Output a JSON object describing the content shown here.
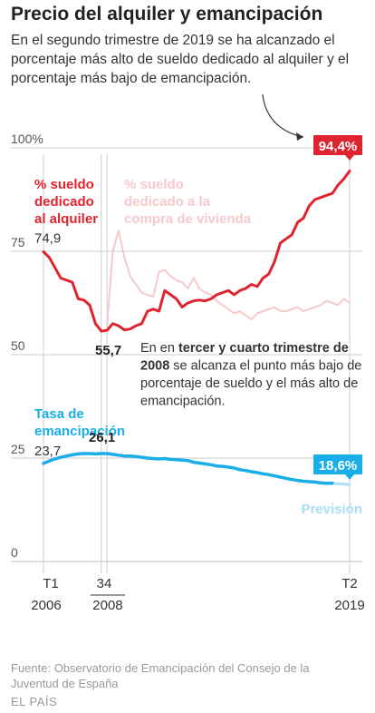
{
  "title": "Precio del alquiler y emancipación",
  "subtitle": "En el segundo trimestre de 2019 se ha alcanzado el porcentaje más alto de sueldo dedicado al alquiler y el porcentaje más bajo de emancipación.",
  "footer": {
    "source": "Fuente: Observatorio de Emancipación del Consejo de la Juventud de España",
    "brand": "EL PAÍS"
  },
  "colors": {
    "alquiler": "#e0242f",
    "compra": "#f7c9cb",
    "emancipacion": "#19aee8",
    "prevision": "#a9def5",
    "axis": "#333333",
    "grid": "#cccccc"
  },
  "chart_data": {
    "type": "line",
    "ylim": [
      0,
      100
    ],
    "yticks": [
      0,
      25,
      50,
      75,
      100
    ],
    "ytick_labels": [
      "0",
      "25",
      "50",
      "75",
      "100%"
    ],
    "xticks": [
      {
        "index": 0,
        "top": "T1",
        "bottom": "2006"
      },
      {
        "index": 10,
        "top": "3",
        "bottom": ""
      },
      {
        "index": 11,
        "top": "4",
        "bottom": ""
      },
      {
        "index": 53,
        "top": "T2",
        "bottom": "2019"
      }
    ],
    "year_2008_label": "2008",
    "series": [
      {
        "name": "% sueldo dedicado al alquiler",
        "key": "alquiler",
        "x": [
          0,
          1,
          2,
          3,
          4,
          5,
          6,
          7,
          8,
          9,
          10,
          11,
          12,
          13,
          14,
          15,
          16,
          17,
          18,
          19,
          20,
          21,
          22,
          23,
          24,
          25,
          26,
          27,
          28,
          29,
          30,
          31,
          32,
          33,
          34,
          35,
          36,
          37,
          38,
          39,
          40,
          41,
          42,
          43,
          44,
          45,
          46,
          47,
          48,
          49,
          50,
          51,
          52,
          53
        ],
        "values": [
          74.9,
          73.5,
          71.0,
          68.5,
          68.0,
          67.5,
          63.5,
          63.2,
          62.0,
          57.5,
          55.7,
          55.9,
          57.5,
          57.0,
          56.0,
          56.2,
          57.0,
          57.5,
          60.5,
          61.0,
          60.5,
          65.5,
          64.5,
          63.5,
          61.5,
          62.5,
          63.0,
          63.2,
          63.0,
          63.5,
          64.5,
          65.0,
          65.5,
          64.5,
          65.5,
          66.0,
          67.0,
          66.5,
          68.5,
          69.5,
          72.5,
          77.0,
          78.0,
          79.0,
          82.0,
          83.0,
          86.0,
          87.5,
          88.0,
          88.5,
          89.0,
          91.0,
          92.5,
          94.4
        ],
        "labels": [
          "% sueldo",
          "dedicado",
          "al alquiler"
        ]
      },
      {
        "name": "% sueldo dedicado a la compra de vivienda",
        "key": "compra",
        "x": [
          11,
          12,
          13,
          14,
          15,
          16,
          17,
          18,
          19,
          20,
          21,
          22,
          23,
          24,
          25,
          26,
          27,
          28,
          29,
          30,
          31,
          32,
          33,
          34,
          35,
          36,
          37,
          38,
          39,
          40,
          41,
          42,
          43,
          44,
          45,
          46,
          47,
          48,
          49,
          50,
          51,
          52,
          53
        ],
        "values": [
          57.0,
          75.0,
          80.0,
          73.5,
          69.0,
          67.0,
          65.0,
          64.5,
          64.0,
          70.0,
          70.5,
          69.0,
          68.0,
          67.5,
          66.0,
          68.5,
          66.0,
          65.0,
          64.5,
          63.0,
          62.0,
          61.0,
          60.0,
          60.5,
          59.5,
          58.5,
          60.0,
          60.5,
          61.0,
          61.5,
          60.5,
          60.5,
          61.0,
          61.5,
          60.5,
          61.0,
          61.5,
          62.0,
          63.0,
          62.5,
          62.0,
          63.5,
          62.5
        ],
        "labels": [
          "% sueldo",
          "dedicado a la",
          "compra de vivienda"
        ]
      },
      {
        "name": "Tasa de emancipación",
        "key": "emancipacion",
        "x": [
          0,
          1,
          2,
          3,
          4,
          5,
          6,
          7,
          8,
          9,
          10,
          11,
          12,
          13,
          14,
          15,
          16,
          17,
          18,
          19,
          20,
          21,
          22,
          23,
          24,
          25,
          26,
          27,
          28,
          29,
          30,
          31,
          32,
          33,
          34,
          35,
          36,
          37,
          38,
          39,
          40,
          41,
          42,
          43,
          44,
          45,
          46,
          47,
          48,
          49,
          50
        ],
        "values": [
          23.7,
          24.3,
          24.8,
          25.2,
          25.5,
          25.8,
          26.0,
          26.1,
          26.1,
          26.0,
          26.1,
          26.1,
          25.9,
          25.7,
          25.5,
          25.5,
          25.4,
          25.2,
          25.0,
          24.9,
          24.8,
          24.9,
          24.7,
          24.6,
          24.5,
          24.4,
          24.0,
          23.8,
          23.6,
          23.4,
          23.1,
          23.0,
          22.8,
          22.6,
          22.2,
          22.0,
          21.7,
          21.5,
          21.2,
          21.0,
          20.7,
          20.4,
          20.1,
          19.8,
          19.6,
          19.4,
          19.3,
          19.2,
          19.0,
          18.9,
          18.9
        ],
        "labels": [
          "Tasa de",
          "emancipación"
        ]
      },
      {
        "name": "Previsión",
        "key": "prevision",
        "x": [
          50,
          51,
          52,
          53
        ],
        "values": [
          18.9,
          18.8,
          18.7,
          18.6
        ],
        "labels": [
          "Previsión"
        ]
      }
    ],
    "data_labels": [
      {
        "series": "alquiler",
        "x": 0,
        "text": "74,9"
      },
      {
        "series": "alquiler",
        "x": 10,
        "text": "55,7"
      },
      {
        "series": "alquiler",
        "x": 53,
        "text": "94,4%"
      },
      {
        "series": "emancipacion",
        "x": 0,
        "text": "23,7"
      },
      {
        "series": "emancipacion",
        "x": 10,
        "text": "26,1"
      },
      {
        "series": "prevision",
        "x": 53,
        "text": "18,6%"
      }
    ],
    "annotation": {
      "parts": [
        {
          "text": "En en ",
          "bold": false
        },
        {
          "text": "tercer y cuarto trimestre de 2008",
          "bold": true
        },
        {
          "text": " se alcanza el punto más bajo de porcentaje de sueldo y el más alto de emancipación.",
          "bold": false
        }
      ]
    }
  }
}
